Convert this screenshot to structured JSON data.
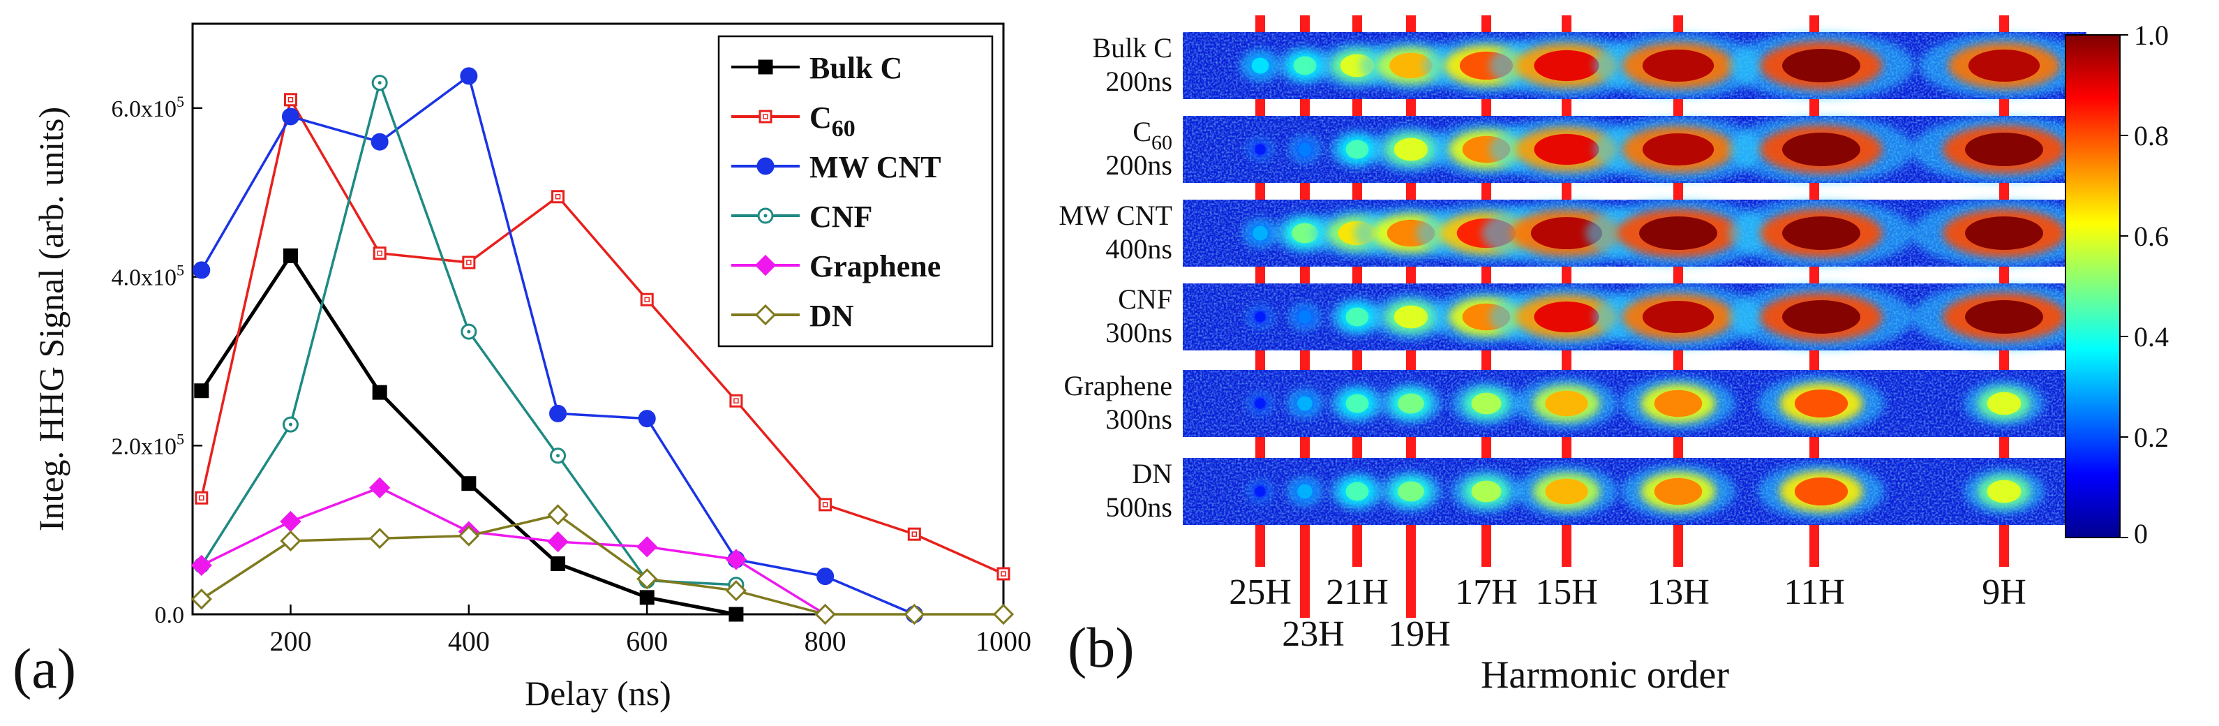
{
  "chart_data": [
    {
      "type": "line",
      "panel_label": "(a)",
      "xlabel": "Delay (ns)",
      "ylabel": "Integ. HHG Signal (arb. units)",
      "xlim": [
        90,
        1000
      ],
      "ylim": [
        0,
        700000
      ],
      "xticks": [
        200,
        400,
        600,
        800,
        1000
      ],
      "yticks": [
        0,
        200000,
        400000,
        600000
      ],
      "ytick_labels": {
        "mantissas": [
          "0.0",
          "2.0x10",
          "4.0x10",
          "6.0x10"
        ],
        "exponent": "5"
      },
      "legend_position": "top-right",
      "series": [
        {
          "name": "Bulk C",
          "name_main": "Bulk C",
          "name_sub": "",
          "color": "#000000",
          "marker": "square-filled",
          "x": [
            100,
            200,
            300,
            400,
            500,
            600,
            700
          ],
          "y": [
            265000,
            425000,
            263000,
            155000,
            60000,
            20000,
            0
          ]
        },
        {
          "name": "C60",
          "name_main": "C",
          "name_sub": "60",
          "color": "#e8201c",
          "marker": "square-open",
          "x": [
            100,
            200,
            300,
            400,
            500,
            600,
            700,
            800,
            900,
            1000
          ],
          "y": [
            138000,
            610000,
            428000,
            417000,
            495000,
            373000,
            253000,
            130000,
            95000,
            48000
          ]
        },
        {
          "name": "MW CNT",
          "name_main": "MW CNT",
          "name_sub": "",
          "color": "#1a33e6",
          "marker": "circle-filled",
          "x": [
            100,
            200,
            300,
            400,
            500,
            600,
            700,
            800,
            900
          ],
          "y": [
            408000,
            590000,
            560000,
            638000,
            238000,
            232000,
            65000,
            45000,
            0
          ]
        },
        {
          "name": "CNF",
          "name_main": "CNF",
          "name_sub": "",
          "color": "#1e8a82",
          "marker": "circle-open",
          "x": [
            100,
            200,
            300,
            400,
            500,
            600,
            700
          ],
          "y": [
            58000,
            225000,
            630000,
            335000,
            188000,
            40000,
            35000
          ]
        },
        {
          "name": "Graphene",
          "name_main": "Graphene",
          "name_sub": "",
          "color": "#ee18ee",
          "marker": "diamond-filled",
          "x": [
            100,
            200,
            300,
            400,
            500,
            600,
            700,
            800
          ],
          "y": [
            58000,
            110000,
            150000,
            98000,
            86000,
            80000,
            65000,
            0
          ]
        },
        {
          "name": "DN",
          "name_main": "DN",
          "name_sub": "",
          "color": "#7f7a1e",
          "marker": "diamond-open",
          "x": [
            100,
            200,
            300,
            400,
            500,
            600,
            700,
            800,
            900,
            1000
          ],
          "y": [
            18000,
            87000,
            90000,
            93000,
            118000,
            42000,
            28000,
            0,
            0,
            0
          ]
        }
      ]
    },
    {
      "type": "heatmap",
      "panel_label": "(b)",
      "xlabel": "Harmonic order",
      "samples": [
        {
          "name": "Bulk C",
          "name_main": "Bulk C",
          "name_sub": "",
          "delay": "200ns"
        },
        {
          "name": "C60",
          "name_main": "C",
          "name_sub": "60",
          "delay": "200ns"
        },
        {
          "name": "MW CNT",
          "name_main": "MW CNT",
          "name_sub": "",
          "delay": "400ns"
        },
        {
          "name": "CNF",
          "name_main": "CNF",
          "name_sub": "",
          "delay": "300ns"
        },
        {
          "name": "Graphene",
          "name_main": "Graphene",
          "name_sub": "",
          "delay": "300ns"
        },
        {
          "name": "DN",
          "name_main": "DN",
          "name_sub": "",
          "delay": "500ns"
        }
      ],
      "harmonics": [
        "25H",
        "23H",
        "21H",
        "19H",
        "17H",
        "15H",
        "13H",
        "11H",
        "9H"
      ],
      "intensity": [
        [
          0.35,
          0.45,
          0.6,
          0.7,
          0.8,
          0.9,
          0.95,
          1.0,
          0.95
        ],
        [
          0.15,
          0.25,
          0.45,
          0.6,
          0.75,
          0.9,
          0.95,
          1.0,
          1.0
        ],
        [
          0.3,
          0.5,
          0.65,
          0.75,
          0.85,
          0.95,
          1.0,
          1.0,
          1.0
        ],
        [
          0.15,
          0.25,
          0.45,
          0.6,
          0.75,
          0.9,
          0.95,
          1.0,
          1.0
        ],
        [
          0.15,
          0.3,
          0.45,
          0.5,
          0.55,
          0.7,
          0.75,
          0.8,
          0.6
        ],
        [
          0.15,
          0.3,
          0.45,
          0.5,
          0.55,
          0.7,
          0.75,
          0.8,
          0.6
        ]
      ],
      "colorbar": {
        "min": 0,
        "max": 1.0,
        "ticks": [
          "0",
          "0.2",
          "0.4",
          "0.6",
          "0.8",
          "1.0"
        ]
      }
    }
  ]
}
